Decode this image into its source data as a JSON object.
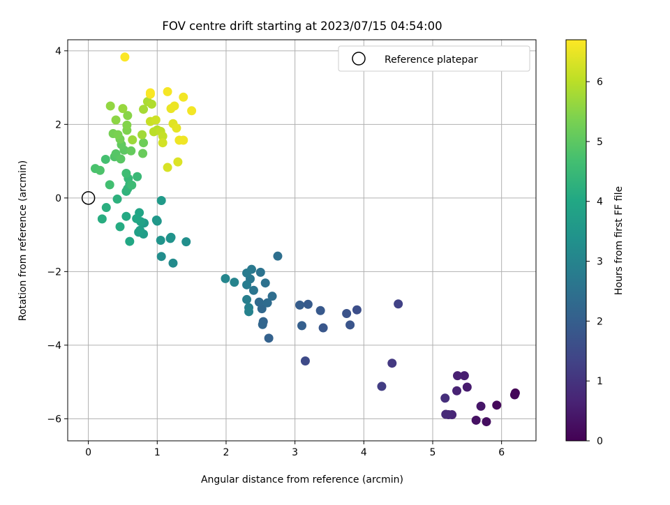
{
  "chart_data": {
    "type": "scatter",
    "title": "FOV centre drift starting at 2023/07/15 04:54:00",
    "xlabel": "Angular distance from reference (arcmin)",
    "ylabel": "Rotation from reference (arcmin)",
    "xlim": [
      -0.3,
      6.5
    ],
    "ylim": [
      -6.6,
      4.3
    ],
    "xticks": [
      "0",
      "1",
      "2",
      "3",
      "4",
      "5",
      "6"
    ],
    "yticks": [
      "−6",
      "−4",
      "−2",
      "0",
      "2",
      "4"
    ],
    "grid": true,
    "legend": {
      "placement": "top-right",
      "label": "Reference platepar"
    },
    "reference_point": {
      "x": 0,
      "y": 0
    },
    "colorbar": {
      "label": "Hours from first FF file",
      "colormap": "viridis",
      "range": [
        0,
        6.7
      ],
      "ticks": [
        "0",
        "1",
        "2",
        "3",
        "4",
        "5",
        "6"
      ]
    },
    "series": [
      {
        "points": [
          {
            "x": 6.2,
            "y": -5.3,
            "c": 0.05
          },
          {
            "x": 6.19,
            "y": -5.35,
            "c": 0.1
          },
          {
            "x": 5.93,
            "y": -5.63,
            "c": 0.15
          },
          {
            "x": 5.78,
            "y": -6.08,
            "c": 0.25
          },
          {
            "x": 5.63,
            "y": -6.04,
            "c": 0.3
          },
          {
            "x": 5.7,
            "y": -5.66,
            "c": 0.4
          },
          {
            "x": 5.5,
            "y": -5.14,
            "c": 0.5
          },
          {
            "x": 5.46,
            "y": -4.83,
            "c": 0.55
          },
          {
            "x": 5.36,
            "y": -4.83,
            "c": 0.6
          },
          {
            "x": 5.35,
            "y": -5.24,
            "c": 0.65
          },
          {
            "x": 5.28,
            "y": -5.89,
            "c": 0.7
          },
          {
            "x": 5.23,
            "y": -5.89,
            "c": 0.75
          },
          {
            "x": 5.19,
            "y": -5.88,
            "c": 0.8
          },
          {
            "x": 5.18,
            "y": -5.44,
            "c": 0.9
          },
          {
            "x": 4.41,
            "y": -4.49,
            "c": 1.1
          },
          {
            "x": 4.26,
            "y": -5.12,
            "c": 1.2
          },
          {
            "x": 4.5,
            "y": -2.88,
            "c": 1.3
          },
          {
            "x": 3.15,
            "y": -4.43,
            "c": 1.5
          },
          {
            "x": 3.9,
            "y": -3.04,
            "c": 1.6
          },
          {
            "x": 3.75,
            "y": -3.14,
            "c": 1.7
          },
          {
            "x": 3.8,
            "y": -3.45,
            "c": 1.75
          },
          {
            "x": 3.41,
            "y": -3.53,
            "c": 1.8
          },
          {
            "x": 3.37,
            "y": -3.06,
            "c": 1.85
          },
          {
            "x": 3.19,
            "y": -2.89,
            "c": 1.9
          },
          {
            "x": 3.07,
            "y": -2.91,
            "c": 1.95
          },
          {
            "x": 3.1,
            "y": -3.47,
            "c": 2.0
          },
          {
            "x": 2.62,
            "y": -3.81,
            "c": 2.1
          },
          {
            "x": 2.54,
            "y": -3.36,
            "c": 2.15
          },
          {
            "x": 2.53,
            "y": -3.44,
            "c": 2.2
          },
          {
            "x": 2.52,
            "y": -3.01,
            "c": 2.25
          },
          {
            "x": 2.48,
            "y": -2.83,
            "c": 2.3
          },
          {
            "x": 2.6,
            "y": -2.85,
            "c": 2.35
          },
          {
            "x": 2.67,
            "y": -2.67,
            "c": 2.4
          },
          {
            "x": 2.75,
            "y": -1.58,
            "c": 2.45
          },
          {
            "x": 2.57,
            "y": -2.31,
            "c": 2.5
          },
          {
            "x": 2.5,
            "y": -2.02,
            "c": 2.55
          },
          {
            "x": 2.4,
            "y": -2.51,
            "c": 2.6
          },
          {
            "x": 2.35,
            "y": -2.2,
            "c": 2.65
          },
          {
            "x": 2.37,
            "y": -1.94,
            "c": 2.7
          },
          {
            "x": 2.3,
            "y": -2.04,
            "c": 2.75
          },
          {
            "x": 2.3,
            "y": -2.36,
            "c": 2.8
          },
          {
            "x": 2.3,
            "y": -2.76,
            "c": 2.85
          },
          {
            "x": 2.33,
            "y": -2.98,
            "c": 2.9
          },
          {
            "x": 2.33,
            "y": -3.09,
            "c": 2.95
          },
          {
            "x": 2.12,
            "y": -2.29,
            "c": 3.0
          },
          {
            "x": 1.99,
            "y": -2.19,
            "c": 3.05
          },
          {
            "x": 1.23,
            "y": -1.77,
            "c": 3.2
          },
          {
            "x": 1.06,
            "y": -1.59,
            "c": 3.25
          },
          {
            "x": 1.42,
            "y": -1.19,
            "c": 3.3
          },
          {
            "x": 1.19,
            "y": -1.1,
            "c": 3.35
          },
          {
            "x": 1.2,
            "y": -1.07,
            "c": 3.4
          },
          {
            "x": 1.05,
            "y": -1.15,
            "c": 3.45
          },
          {
            "x": 1.0,
            "y": -0.63,
            "c": 3.5
          },
          {
            "x": 0.99,
            "y": -0.6,
            "c": 3.55
          },
          {
            "x": 1.06,
            "y": -0.07,
            "c": 3.6
          },
          {
            "x": 0.81,
            "y": -0.68,
            "c": 3.65
          },
          {
            "x": 0.8,
            "y": -0.98,
            "c": 3.7
          },
          {
            "x": 0.75,
            "y": -0.88,
            "c": 3.75
          },
          {
            "x": 0.73,
            "y": -0.93,
            "c": 3.8
          },
          {
            "x": 0.76,
            "y": -0.64,
            "c": 3.85
          },
          {
            "x": 0.74,
            "y": -0.4,
            "c": 3.9
          },
          {
            "x": 0.7,
            "y": -0.56,
            "c": 3.95
          },
          {
            "x": 0.6,
            "y": -1.18,
            "c": 4.0
          },
          {
            "x": 0.55,
            "y": -0.5,
            "c": 4.05
          },
          {
            "x": 0.46,
            "y": -0.78,
            "c": 4.1
          },
          {
            "x": 0.2,
            "y": -0.57,
            "c": 4.15
          },
          {
            "x": 0.26,
            "y": -0.26,
            "c": 4.2
          },
          {
            "x": 0.42,
            "y": -0.03,
            "c": 4.25
          },
          {
            "x": 0.55,
            "y": 0.18,
            "c": 4.3
          },
          {
            "x": 0.57,
            "y": 0.25,
            "c": 4.35
          },
          {
            "x": 0.6,
            "y": 0.37,
            "c": 4.4
          },
          {
            "x": 0.58,
            "y": 0.53,
            "c": 4.45
          },
          {
            "x": 0.71,
            "y": 0.58,
            "c": 4.5
          },
          {
            "x": 0.63,
            "y": 0.35,
            "c": 4.55
          },
          {
            "x": 0.55,
            "y": 0.67,
            "c": 4.6
          },
          {
            "x": 0.31,
            "y": 0.36,
            "c": 4.65
          },
          {
            "x": 0.25,
            "y": 1.05,
            "c": 4.7
          },
          {
            "x": 0.1,
            "y": 0.8,
            "c": 4.75
          },
          {
            "x": 0.17,
            "y": 0.75,
            "c": 4.8
          },
          {
            "x": 0.38,
            "y": 1.12,
            "c": 4.85
          },
          {
            "x": 0.4,
            "y": 1.2,
            "c": 4.9
          },
          {
            "x": 0.47,
            "y": 1.06,
            "c": 4.95
          },
          {
            "x": 0.52,
            "y": 1.3,
            "c": 5.0
          },
          {
            "x": 0.48,
            "y": 1.45,
            "c": 5.05
          },
          {
            "x": 0.62,
            "y": 1.28,
            "c": 5.1
          },
          {
            "x": 0.79,
            "y": 1.21,
            "c": 5.15
          },
          {
            "x": 0.8,
            "y": 1.5,
            "c": 5.2
          },
          {
            "x": 0.46,
            "y": 1.6,
            "c": 5.25
          },
          {
            "x": 0.36,
            "y": 1.75,
            "c": 5.3
          },
          {
            "x": 0.43,
            "y": 1.72,
            "c": 5.35
          },
          {
            "x": 0.56,
            "y": 1.84,
            "c": 5.4
          },
          {
            "x": 0.56,
            "y": 1.98,
            "c": 5.45
          },
          {
            "x": 0.57,
            "y": 2.24,
            "c": 5.5
          },
          {
            "x": 0.4,
            "y": 2.12,
            "c": 5.55
          },
          {
            "x": 0.32,
            "y": 2.5,
            "c": 5.6
          },
          {
            "x": 0.5,
            "y": 2.43,
            "c": 5.65
          },
          {
            "x": 0.64,
            "y": 1.58,
            "c": 5.7
          },
          {
            "x": 0.78,
            "y": 1.72,
            "c": 5.75
          },
          {
            "x": 0.8,
            "y": 2.41,
            "c": 5.8
          },
          {
            "x": 0.86,
            "y": 2.62,
            "c": 5.85
          },
          {
            "x": 0.92,
            "y": 2.55,
            "c": 5.9
          },
          {
            "x": 1.0,
            "y": 1.85,
            "c": 5.95
          },
          {
            "x": 0.95,
            "y": 1.8,
            "c": 6.0
          },
          {
            "x": 1.05,
            "y": 1.81,
            "c": 6.05
          },
          {
            "x": 1.08,
            "y": 1.68,
            "c": 6.1
          },
          {
            "x": 0.9,
            "y": 2.08,
            "c": 6.15
          },
          {
            "x": 0.98,
            "y": 2.12,
            "c": 6.2
          },
          {
            "x": 1.08,
            "y": 1.5,
            "c": 6.25
          },
          {
            "x": 1.15,
            "y": 0.83,
            "c": 6.3
          },
          {
            "x": 1.3,
            "y": 0.98,
            "c": 6.35
          },
          {
            "x": 1.23,
            "y": 2.02,
            "c": 6.4
          },
          {
            "x": 1.28,
            "y": 1.9,
            "c": 6.45
          },
          {
            "x": 1.2,
            "y": 2.43,
            "c": 6.5
          },
          {
            "x": 1.25,
            "y": 2.5,
            "c": 6.52
          },
          {
            "x": 1.32,
            "y": 1.57,
            "c": 6.54
          },
          {
            "x": 1.38,
            "y": 1.57,
            "c": 6.56
          },
          {
            "x": 1.38,
            "y": 2.74,
            "c": 6.58
          },
          {
            "x": 1.5,
            "y": 2.37,
            "c": 6.6
          },
          {
            "x": 1.15,
            "y": 2.89,
            "c": 6.62
          },
          {
            "x": 0.9,
            "y": 2.82,
            "c": 6.64
          },
          {
            "x": 0.9,
            "y": 2.86,
            "c": 6.66
          },
          {
            "x": 0.53,
            "y": 3.83,
            "c": 6.68
          }
        ]
      }
    ]
  }
}
